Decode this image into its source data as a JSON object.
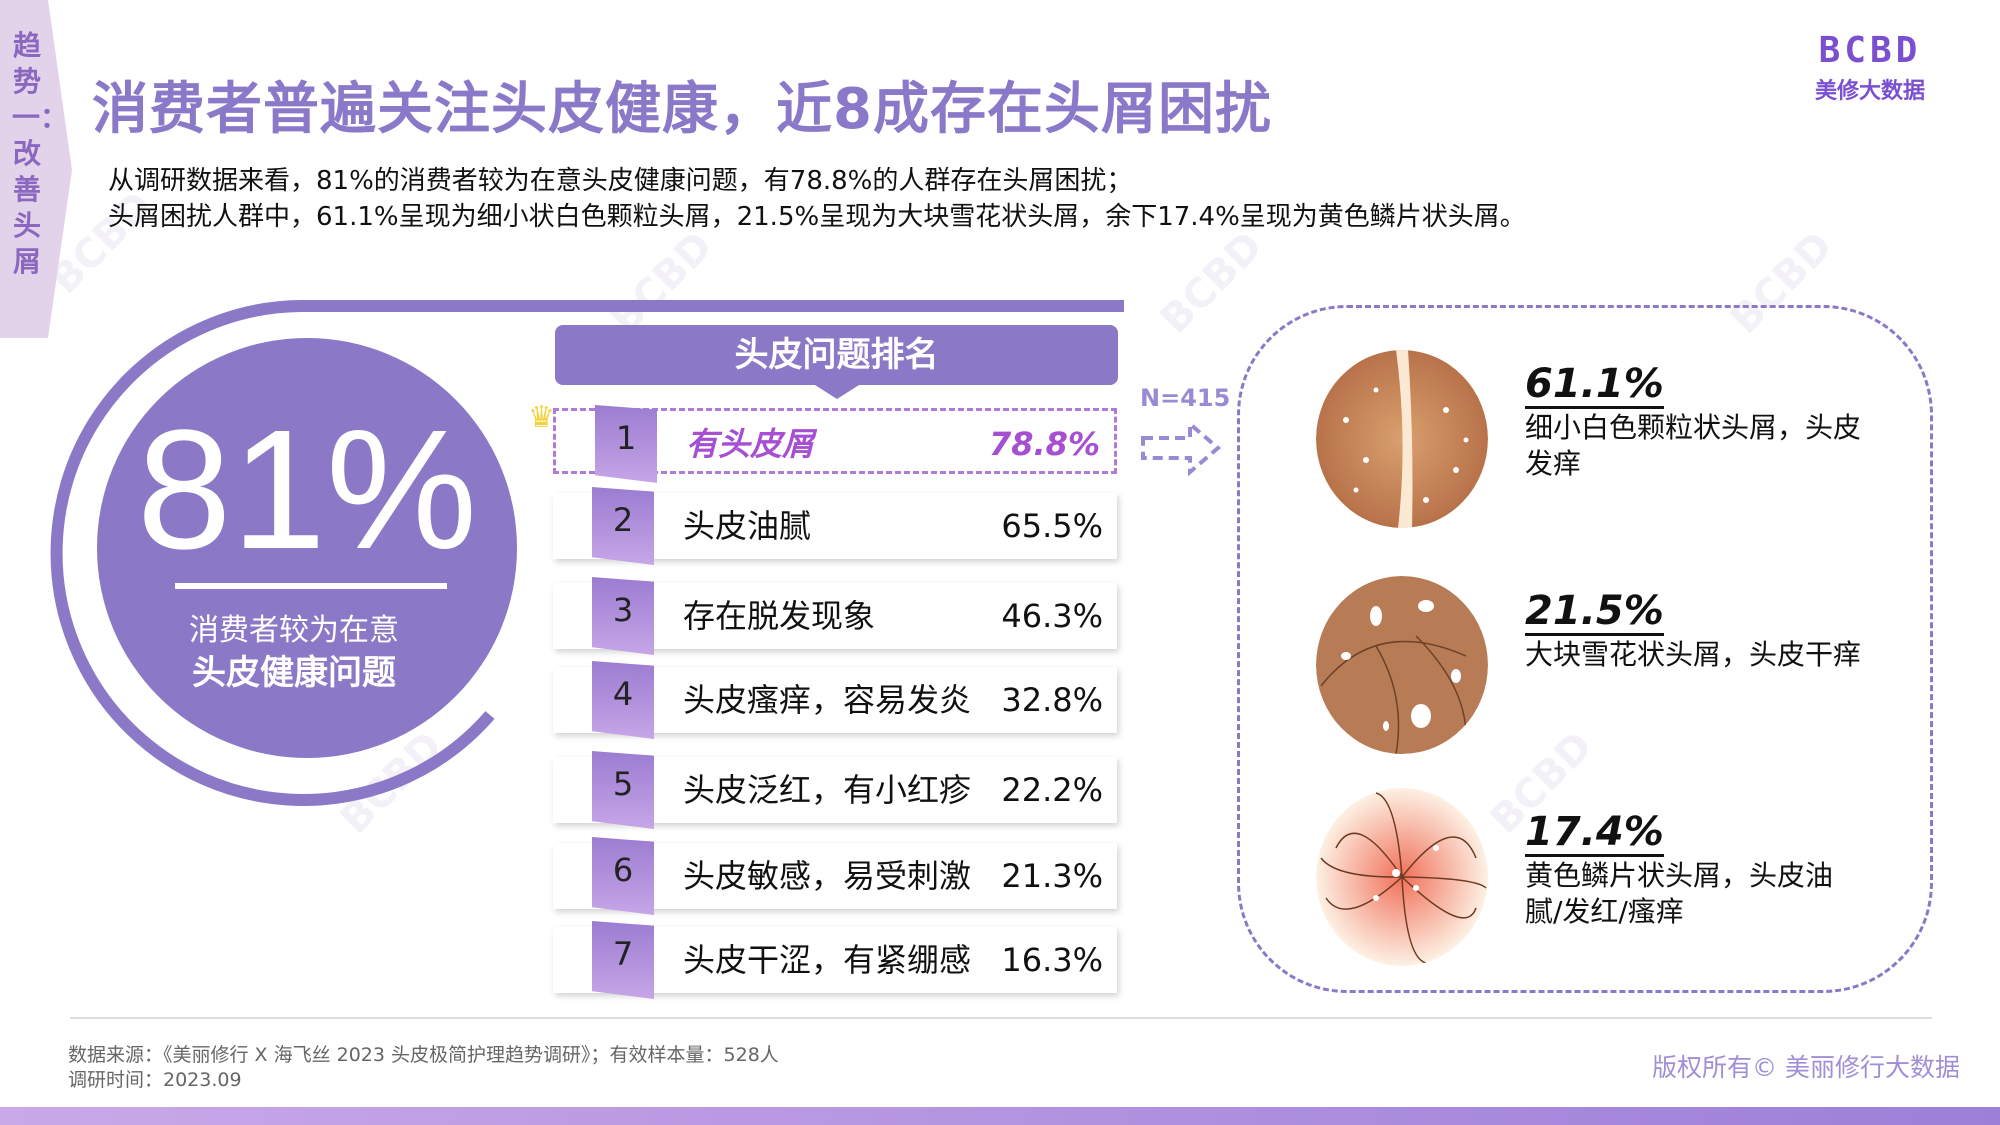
{
  "side_tab": "趋势一：改善头屑",
  "title": "消费者普遍关注头皮健康，近8成存在头屑困扰",
  "logo": {
    "mark": "BCBD",
    "name": "美修大数据"
  },
  "intro": [
    "从调研数据来看，81%的消费者较为在意头皮健康问题，有78.8%的人群存在头屑困扰；",
    "头屑困扰人群中，61.1%呈现为细小状白色颗粒头屑，21.5%呈现为大块雪花状头屑，余下17.4%呈现为黄色鳞片状头屑。"
  ],
  "hero": {
    "value": "81%",
    "line1": "消费者较为在意",
    "line2": "头皮健康问题"
  },
  "ranking": {
    "title": "头皮问题排名",
    "items": [
      {
        "rank": "1",
        "label": "有头皮屑",
        "value": "78.8%"
      },
      {
        "rank": "2",
        "label": "头皮油腻",
        "value": "65.5%"
      },
      {
        "rank": "3",
        "label": "存在脱发现象",
        "value": "46.3%"
      },
      {
        "rank": "4",
        "label": "头皮瘙痒，容易发炎",
        "value": "32.8%"
      },
      {
        "rank": "5",
        "label": "头皮泛红，有小红疹",
        "value": "22.2%"
      },
      {
        "rank": "6",
        "label": "头皮敏感，易受刺激",
        "value": "21.3%"
      },
      {
        "rank": "7",
        "label": "头皮干涩，有紧绷感",
        "value": "16.3%"
      }
    ]
  },
  "sample": "N=415",
  "dandruff_types": [
    {
      "value": "61.1%",
      "desc": "细小白色颗粒状头屑，头皮发痒"
    },
    {
      "value": "21.5%",
      "desc": "大块雪花状头屑，头皮干痒"
    },
    {
      "value": "17.4%",
      "desc": "黄色鳞片状头屑，头皮油腻/发红/瘙痒"
    }
  ],
  "footer": {
    "source": "数据来源：《美丽修行 X 海飞丝 2023 头皮极简护理趋势调研》；有效样本量：528人",
    "date": "调研时间：2023.09",
    "copyright": "版权所有© 美丽修行大数据"
  },
  "colors": {
    "accent": "#8b78c6",
    "highlight": "#a64fd2"
  }
}
